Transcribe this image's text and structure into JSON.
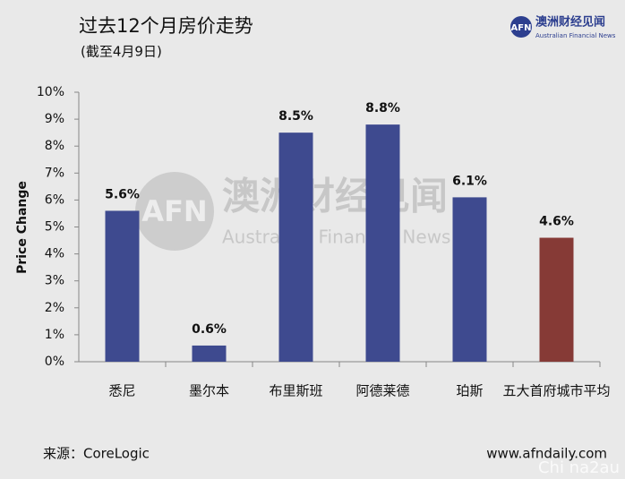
{
  "chart_data": {
    "type": "bar",
    "title": "过去12个月房价走势",
    "subtitle": "(截至4月9日)",
    "ylabel": "Price Change",
    "categories": [
      "悉尼",
      "墨尔本",
      "布里斯班",
      "阿德莱德",
      "珀斯",
      "五大首府城市平均"
    ],
    "values": [
      5.6,
      0.6,
      8.5,
      8.8,
      6.1,
      4.6
    ],
    "value_labels": [
      "5.6%",
      "0.6%",
      "8.5%",
      "8.8%",
      "6.1%",
      "4.6%"
    ],
    "colors": [
      "#3e4a8f",
      "#3e4a8f",
      "#3e4a8f",
      "#3e4a8f",
      "#3e4a8f",
      "#863a36"
    ],
    "ylim": [
      0,
      10
    ],
    "yticks": [
      {
        "value": 0,
        "label": "0%"
      },
      {
        "value": 1,
        "label": "1%"
      },
      {
        "value": 2,
        "label": "2%"
      },
      {
        "value": 3,
        "label": "3%"
      },
      {
        "value": 4,
        "label": "4%"
      },
      {
        "value": 5,
        "label": "5%"
      },
      {
        "value": 6,
        "label": "6%"
      },
      {
        "value": 7,
        "label": "7%"
      },
      {
        "value": 8,
        "label": "8%"
      },
      {
        "value": 9,
        "label": "9%"
      },
      {
        "value": 10,
        "label": "10%"
      }
    ],
    "grid": false
  },
  "branding": {
    "logo": "AFN",
    "name": "澳洲财经见闻",
    "english": "Australian Financial News"
  },
  "footer": {
    "source": "来源：CoreLogic",
    "website": "www.afndaily.com",
    "watermark": "Chi na2au"
  }
}
